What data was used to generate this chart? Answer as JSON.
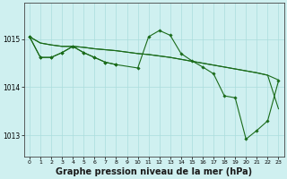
{
  "background_color": "#cff0f0",
  "grid_color": "#aadddd",
  "line_color": "#1a6b1a",
  "marker_color": "#1a6b1a",
  "xlabel": "Graphe pression niveau de la mer (hPa)",
  "xlabel_fontsize": 7,
  "ylabel_ticks": [
    1013,
    1014,
    1015
  ],
  "xlim": [
    -0.5,
    23.5
  ],
  "ylim": [
    1012.55,
    1015.75
  ],
  "xticks": [
    0,
    1,
    2,
    3,
    4,
    5,
    6,
    7,
    8,
    9,
    10,
    11,
    12,
    13,
    14,
    15,
    16,
    17,
    18,
    19,
    20,
    21,
    22,
    23
  ],
  "line1_x": [
    0,
    1,
    2,
    3,
    4,
    5,
    6,
    7,
    8,
    9,
    10,
    11,
    12,
    13,
    14,
    15,
    16,
    17,
    18,
    19,
    20,
    21,
    22,
    23
  ],
  "line1_y": [
    1015.05,
    1014.92,
    1014.88,
    1014.85,
    1014.85,
    1014.83,
    1014.8,
    1014.78,
    1014.76,
    1014.73,
    1014.7,
    1014.68,
    1014.65,
    1014.62,
    1014.58,
    1014.54,
    1014.5,
    1014.46,
    1014.42,
    1014.38,
    1014.34,
    1014.3,
    1014.25,
    1014.15
  ],
  "line2_x": [
    0,
    1,
    2,
    3,
    4,
    5,
    6,
    7,
    8,
    9,
    10,
    11,
    12,
    13,
    14,
    15,
    16,
    17,
    18,
    19,
    20,
    21,
    22,
    23
  ],
  "line2_y": [
    1015.05,
    1014.92,
    1014.88,
    1014.85,
    1014.85,
    1014.83,
    1014.8,
    1014.78,
    1014.76,
    1014.73,
    1014.7,
    1014.68,
    1014.65,
    1014.62,
    1014.58,
    1014.54,
    1014.5,
    1014.46,
    1014.42,
    1014.38,
    1014.34,
    1014.3,
    1014.25,
    1013.55
  ],
  "line3_x": [
    0,
    1,
    2,
    3,
    4,
    5,
    6,
    7,
    8,
    10,
    11,
    12,
    13,
    14,
    15,
    16,
    17,
    18,
    19,
    20,
    21,
    22,
    23
  ],
  "line3_y": [
    1015.05,
    1014.62,
    1014.62,
    1014.72,
    1014.85,
    1014.72,
    1014.62,
    1014.52,
    1014.47,
    1014.4,
    1015.05,
    1015.18,
    1015.08,
    1014.7,
    1014.55,
    1014.42,
    1014.28,
    1013.82,
    1013.78,
    1012.92,
    1013.1,
    1013.3,
    1014.13
  ],
  "line4_x": [
    0,
    1,
    2,
    3,
    4,
    5,
    6,
    7,
    8
  ],
  "line4_y": [
    1015.05,
    1014.62,
    1014.62,
    1014.72,
    1014.85,
    1014.72,
    1014.62,
    1014.52,
    1014.47
  ]
}
